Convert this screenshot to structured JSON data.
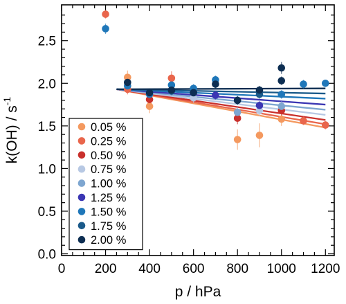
{
  "chart_data": {
    "type": "scatter",
    "xlabel": "p / hPa",
    "ylabel_main": "k(OH) / s",
    "ylabel_superscript": "-1",
    "xlim": [
      0,
      1240
    ],
    "ylim": [
      -0.02,
      2.92
    ],
    "x_ticks": [
      0,
      200,
      400,
      600,
      800,
      1000,
      1200
    ],
    "y_ticks": [
      0.0,
      0.5,
      1.0,
      1.5,
      2.0,
      2.5
    ],
    "y_tick_labels": [
      "0.0",
      "0.5",
      "1.0",
      "1.5",
      "2.0",
      "2.5"
    ],
    "x_tick_labels": [
      "0",
      "200",
      "400",
      "600",
      "800",
      "1000",
      "1200"
    ],
    "grid": false,
    "legend_position": "bottom-left",
    "fit_x_range": [
      250,
      1200
    ],
    "series": [
      {
        "name": "0.05 %",
        "color": "#f4995f",
        "fit": [
          1.93,
          1.48
        ],
        "points": [
          {
            "x": 300,
            "y": 2.07,
            "e": 0.08
          },
          {
            "x": 400,
            "y": 1.73,
            "e": 0.08
          },
          {
            "x": 800,
            "y": 1.34,
            "e": 0.12
          },
          {
            "x": 900,
            "y": 1.39,
            "e": 0.14
          },
          {
            "x": 1000,
            "y": 1.58,
            "e": 0.08
          }
        ]
      },
      {
        "name": "0.25 %",
        "color": "#e9664c",
        "fit": [
          1.93,
          1.52
        ],
        "points": [
          {
            "x": 200,
            "y": 2.81,
            "e": 0.05
          },
          {
            "x": 300,
            "y": 1.93,
            "e": 0.06
          },
          {
            "x": 500,
            "y": 2.06,
            "e": 0.08
          },
          {
            "x": 1100,
            "y": 1.56,
            "e": 0.05
          },
          {
            "x": 1200,
            "y": 1.51,
            "e": 0.05
          }
        ]
      },
      {
        "name": "0.50 %",
        "color": "#c9302c",
        "fit": [
          1.93,
          1.57
        ],
        "points": [
          {
            "x": 400,
            "y": 1.81,
            "e": 0.06
          },
          {
            "x": 800,
            "y": 1.59,
            "e": 0.07
          },
          {
            "x": 1000,
            "y": 1.68,
            "e": 0.07
          }
        ]
      },
      {
        "name": "0.75 %",
        "color": "#b7c8e3",
        "fit": [
          1.93,
          1.63
        ],
        "points": [
          {
            "x": 600,
            "y": 1.83,
            "e": 0.06
          },
          {
            "x": 900,
            "y": 1.68,
            "e": 0.06
          }
        ]
      },
      {
        "name": "1.00 %",
        "color": "#7ea6d0",
        "fit": [
          1.93,
          1.69
        ],
        "points": [
          {
            "x": 800,
            "y": 1.66,
            "e": 0.06
          },
          {
            "x": 1000,
            "y": 1.73,
            "e": 0.06
          }
        ]
      },
      {
        "name": "1.25 %",
        "color": "#3b36b3",
        "fit": [
          1.93,
          1.75
        ],
        "points": [
          {
            "x": 700,
            "y": 1.86,
            "e": 0.05
          },
          {
            "x": 900,
            "y": 1.74,
            "e": 0.05
          }
        ]
      },
      {
        "name": "1.50 %",
        "color": "#1f77b9",
        "fit": [
          1.93,
          1.82
        ],
        "points": [
          {
            "x": 200,
            "y": 2.64,
            "e": 0.06
          },
          {
            "x": 300,
            "y": 1.97,
            "e": 0.05
          },
          {
            "x": 400,
            "y": 1.87,
            "e": 0.05
          },
          {
            "x": 500,
            "y": 1.98,
            "e": 0.05
          },
          {
            "x": 600,
            "y": 1.94,
            "e": 0.05
          },
          {
            "x": 700,
            "y": 2.04,
            "e": 0.05
          },
          {
            "x": 800,
            "y": 1.8,
            "e": 0.05
          },
          {
            "x": 1000,
            "y": 1.87,
            "e": 0.05
          },
          {
            "x": 1100,
            "y": 1.99,
            "e": 0.05
          },
          {
            "x": 1200,
            "y": 2.0,
            "e": 0.04
          }
        ]
      },
      {
        "name": "1.75 %",
        "color": "#1a5a8a",
        "fit": [
          1.93,
          1.88
        ],
        "points": [
          {
            "x": 500,
            "y": 1.91,
            "e": 0.05
          },
          {
            "x": 600,
            "y": 1.89,
            "e": 0.05
          },
          {
            "x": 900,
            "y": 1.87,
            "e": 0.05
          }
        ]
      },
      {
        "name": "2.00 %",
        "color": "#0d2e52",
        "fit": [
          1.93,
          1.94
        ],
        "points": [
          {
            "x": 300,
            "y": 2.01,
            "e": 0.06
          },
          {
            "x": 400,
            "y": 1.89,
            "e": 0.05
          },
          {
            "x": 500,
            "y": 1.92,
            "e": 0.05
          },
          {
            "x": 600,
            "y": 1.89,
            "e": 0.05
          },
          {
            "x": 700,
            "y": 1.99,
            "e": 0.05
          },
          {
            "x": 800,
            "y": 1.8,
            "e": 0.05
          },
          {
            "x": 900,
            "y": 1.92,
            "e": 0.05
          },
          {
            "x": 1000,
            "y": 2.18,
            "e": 0.07
          },
          {
            "x": 1000,
            "y": 2.03,
            "e": 0.05
          }
        ]
      }
    ]
  }
}
